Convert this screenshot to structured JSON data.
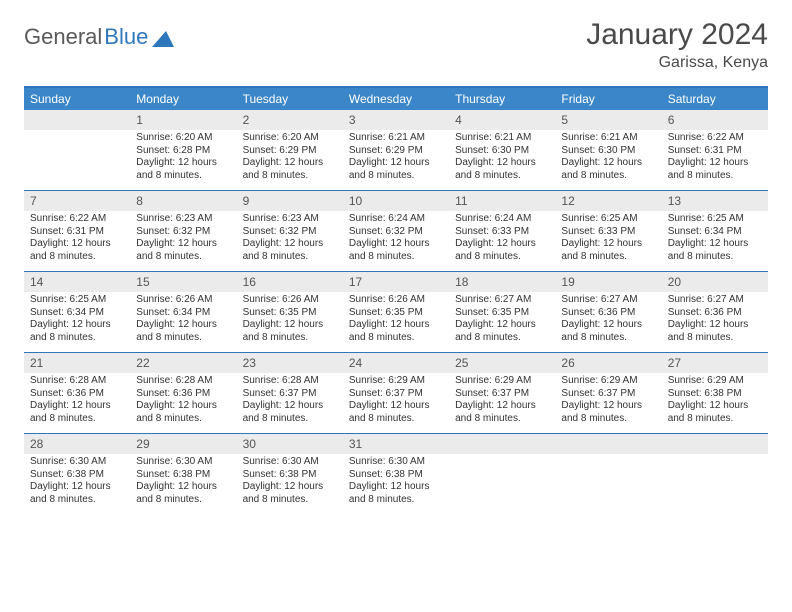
{
  "logo": {
    "text_part1": "General",
    "text_part2": "Blue",
    "triangle_color": "#2f77bb"
  },
  "header": {
    "month_title": "January 2024",
    "location": "Garissa, Kenya"
  },
  "colors": {
    "header_bar": "#3a86c8",
    "week_divider": "#2f77bb",
    "daynum_bg": "#ebebeb",
    "text": "#333333",
    "title_text": "#4a4a4a"
  },
  "typography": {
    "month_title_size": 30,
    "location_size": 16,
    "dow_size": 12,
    "daynum_size": 12,
    "content_size": 10
  },
  "days_of_week": [
    "Sunday",
    "Monday",
    "Tuesday",
    "Wednesday",
    "Thursday",
    "Friday",
    "Saturday"
  ],
  "weeks": [
    [
      {
        "n": "",
        "lines": []
      },
      {
        "n": "1",
        "lines": [
          "Sunrise: 6:20 AM",
          "Sunset: 6:28 PM",
          "Daylight: 12 hours and 8 minutes."
        ]
      },
      {
        "n": "2",
        "lines": [
          "Sunrise: 6:20 AM",
          "Sunset: 6:29 PM",
          "Daylight: 12 hours and 8 minutes."
        ]
      },
      {
        "n": "3",
        "lines": [
          "Sunrise: 6:21 AM",
          "Sunset: 6:29 PM",
          "Daylight: 12 hours and 8 minutes."
        ]
      },
      {
        "n": "4",
        "lines": [
          "Sunrise: 6:21 AM",
          "Sunset: 6:30 PM",
          "Daylight: 12 hours and 8 minutes."
        ]
      },
      {
        "n": "5",
        "lines": [
          "Sunrise: 6:21 AM",
          "Sunset: 6:30 PM",
          "Daylight: 12 hours and 8 minutes."
        ]
      },
      {
        "n": "6",
        "lines": [
          "Sunrise: 6:22 AM",
          "Sunset: 6:31 PM",
          "Daylight: 12 hours and 8 minutes."
        ]
      }
    ],
    [
      {
        "n": "7",
        "lines": [
          "Sunrise: 6:22 AM",
          "Sunset: 6:31 PM",
          "Daylight: 12 hours and 8 minutes."
        ]
      },
      {
        "n": "8",
        "lines": [
          "Sunrise: 6:23 AM",
          "Sunset: 6:32 PM",
          "Daylight: 12 hours and 8 minutes."
        ]
      },
      {
        "n": "9",
        "lines": [
          "Sunrise: 6:23 AM",
          "Sunset: 6:32 PM",
          "Daylight: 12 hours and 8 minutes."
        ]
      },
      {
        "n": "10",
        "lines": [
          "Sunrise: 6:24 AM",
          "Sunset: 6:32 PM",
          "Daylight: 12 hours and 8 minutes."
        ]
      },
      {
        "n": "11",
        "lines": [
          "Sunrise: 6:24 AM",
          "Sunset: 6:33 PM",
          "Daylight: 12 hours and 8 minutes."
        ]
      },
      {
        "n": "12",
        "lines": [
          "Sunrise: 6:25 AM",
          "Sunset: 6:33 PM",
          "Daylight: 12 hours and 8 minutes."
        ]
      },
      {
        "n": "13",
        "lines": [
          "Sunrise: 6:25 AM",
          "Sunset: 6:34 PM",
          "Daylight: 12 hours and 8 minutes."
        ]
      }
    ],
    [
      {
        "n": "14",
        "lines": [
          "Sunrise: 6:25 AM",
          "Sunset: 6:34 PM",
          "Daylight: 12 hours and 8 minutes."
        ]
      },
      {
        "n": "15",
        "lines": [
          "Sunrise: 6:26 AM",
          "Sunset: 6:34 PM",
          "Daylight: 12 hours and 8 minutes."
        ]
      },
      {
        "n": "16",
        "lines": [
          "Sunrise: 6:26 AM",
          "Sunset: 6:35 PM",
          "Daylight: 12 hours and 8 minutes."
        ]
      },
      {
        "n": "17",
        "lines": [
          "Sunrise: 6:26 AM",
          "Sunset: 6:35 PM",
          "Daylight: 12 hours and 8 minutes."
        ]
      },
      {
        "n": "18",
        "lines": [
          "Sunrise: 6:27 AM",
          "Sunset: 6:35 PM",
          "Daylight: 12 hours and 8 minutes."
        ]
      },
      {
        "n": "19",
        "lines": [
          "Sunrise: 6:27 AM",
          "Sunset: 6:36 PM",
          "Daylight: 12 hours and 8 minutes."
        ]
      },
      {
        "n": "20",
        "lines": [
          "Sunrise: 6:27 AM",
          "Sunset: 6:36 PM",
          "Daylight: 12 hours and 8 minutes."
        ]
      }
    ],
    [
      {
        "n": "21",
        "lines": [
          "Sunrise: 6:28 AM",
          "Sunset: 6:36 PM",
          "Daylight: 12 hours and 8 minutes."
        ]
      },
      {
        "n": "22",
        "lines": [
          "Sunrise: 6:28 AM",
          "Sunset: 6:36 PM",
          "Daylight: 12 hours and 8 minutes."
        ]
      },
      {
        "n": "23",
        "lines": [
          "Sunrise: 6:28 AM",
          "Sunset: 6:37 PM",
          "Daylight: 12 hours and 8 minutes."
        ]
      },
      {
        "n": "24",
        "lines": [
          "Sunrise: 6:29 AM",
          "Sunset: 6:37 PM",
          "Daylight: 12 hours and 8 minutes."
        ]
      },
      {
        "n": "25",
        "lines": [
          "Sunrise: 6:29 AM",
          "Sunset: 6:37 PM",
          "Daylight: 12 hours and 8 minutes."
        ]
      },
      {
        "n": "26",
        "lines": [
          "Sunrise: 6:29 AM",
          "Sunset: 6:37 PM",
          "Daylight: 12 hours and 8 minutes."
        ]
      },
      {
        "n": "27",
        "lines": [
          "Sunrise: 6:29 AM",
          "Sunset: 6:38 PM",
          "Daylight: 12 hours and 8 minutes."
        ]
      }
    ],
    [
      {
        "n": "28",
        "lines": [
          "Sunrise: 6:30 AM",
          "Sunset: 6:38 PM",
          "Daylight: 12 hours and 8 minutes."
        ]
      },
      {
        "n": "29",
        "lines": [
          "Sunrise: 6:30 AM",
          "Sunset: 6:38 PM",
          "Daylight: 12 hours and 8 minutes."
        ]
      },
      {
        "n": "30",
        "lines": [
          "Sunrise: 6:30 AM",
          "Sunset: 6:38 PM",
          "Daylight: 12 hours and 8 minutes."
        ]
      },
      {
        "n": "31",
        "lines": [
          "Sunrise: 6:30 AM",
          "Sunset: 6:38 PM",
          "Daylight: 12 hours and 8 minutes."
        ]
      },
      {
        "n": "",
        "lines": []
      },
      {
        "n": "",
        "lines": []
      },
      {
        "n": "",
        "lines": []
      }
    ]
  ]
}
